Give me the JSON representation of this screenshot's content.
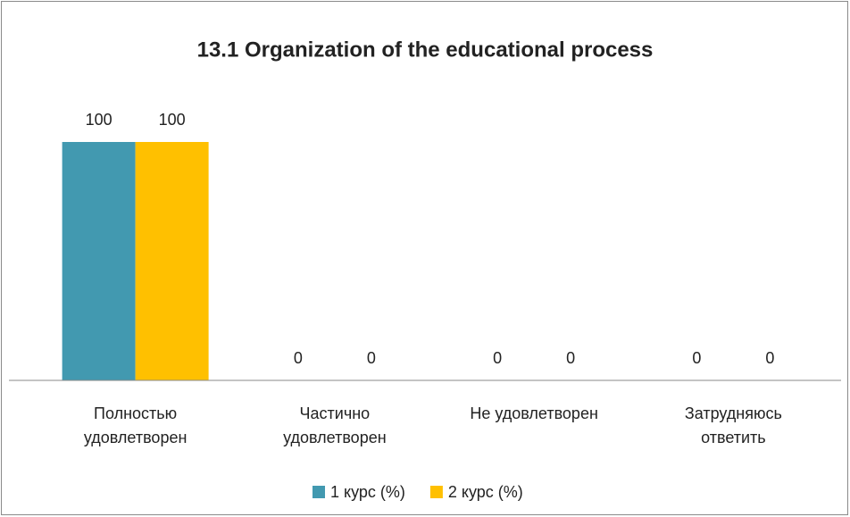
{
  "chart_data": {
    "type": "bar",
    "title": "13.1 Organization of the educational process",
    "categories": [
      "Полностью удовлетворен",
      "Частично удовлетворен",
      "Не удовлетворен",
      "Затрудняюсь ответить"
    ],
    "series": [
      {
        "name": "1 курс (%)",
        "color": "#4299b0",
        "values": [
          100,
          0,
          0,
          0
        ]
      },
      {
        "name": "2 курс (%)",
        "color": "#ffc000",
        "values": [
          100,
          0,
          0,
          0
        ]
      }
    ],
    "ylim": [
      0,
      100
    ],
    "legend": "bottom"
  }
}
